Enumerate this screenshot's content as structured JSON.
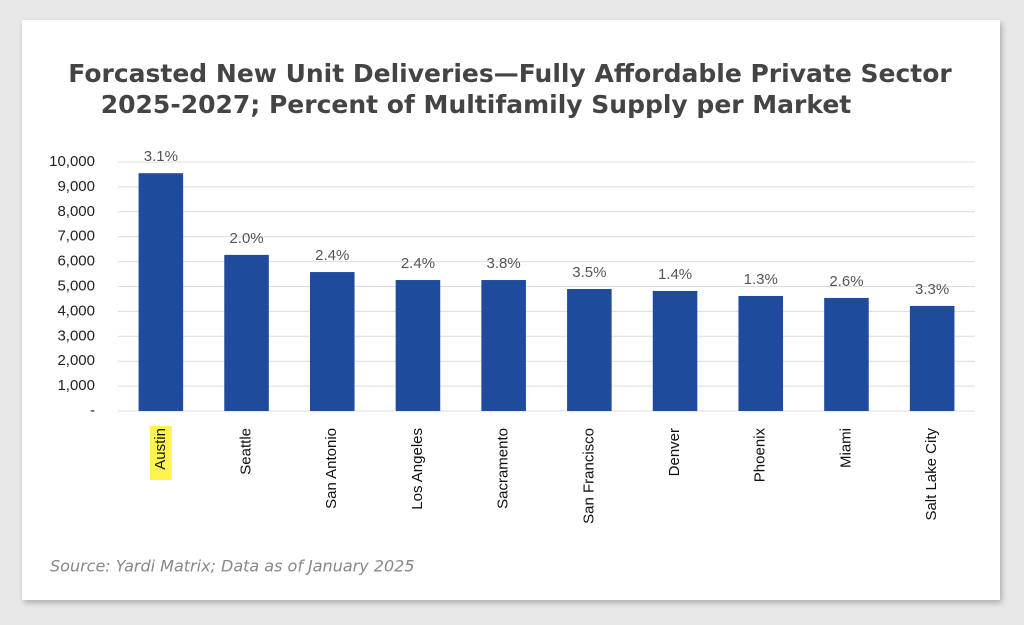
{
  "chart_data": {
    "type": "bar",
    "title": [
      "Forcasted New Unit Deliveries—Fully Affordable Private Sector",
      "2025-2027; Percent of Multifamily Supply per Market"
    ],
    "source": "Source: Yardi Matrix; Data as of January 2025",
    "categories": [
      "Austin",
      "Seattle",
      "San Antonio",
      "Los Angeles",
      "Sacramento",
      "San Francisco",
      "Denver",
      "Phoenix",
      "Miami",
      "Salt Lake City"
    ],
    "values": [
      9550,
      6270,
      5580,
      5260,
      5260,
      4900,
      4820,
      4620,
      4540,
      4220
    ],
    "percent_labels": [
      "3.1%",
      "2.0%",
      "2.4%",
      "2.4%",
      "3.8%",
      "3.5%",
      "1.4%",
      "1.3%",
      "2.6%",
      "3.3%"
    ],
    "color": "#1e4b9c",
    "highlight_category": 0,
    "highlight_color": "#fff44f",
    "ylim": [
      0,
      10000
    ],
    "yticks": [
      {
        "value": 0,
        "label": "-"
      },
      {
        "value": 1000,
        "label": "1,000"
      },
      {
        "value": 2000,
        "label": "2,000"
      },
      {
        "value": 3000,
        "label": "3,000"
      },
      {
        "value": 4000,
        "label": "4,000"
      },
      {
        "value": 5000,
        "label": "5,000"
      },
      {
        "value": 6000,
        "label": "6,000"
      },
      {
        "value": 7000,
        "label": "7,000"
      },
      {
        "value": 8000,
        "label": "8,000"
      },
      {
        "value": 9000,
        "label": "9,000"
      },
      {
        "value": 10000,
        "label": "10,000"
      }
    ],
    "grid": true
  }
}
